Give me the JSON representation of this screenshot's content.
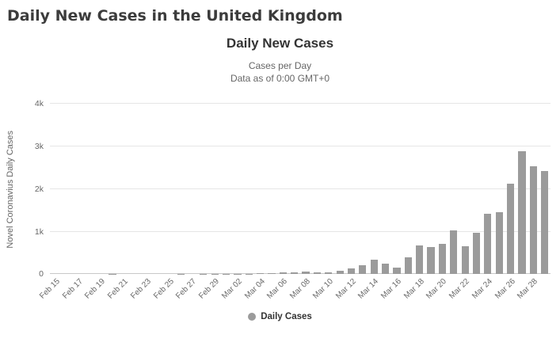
{
  "page": {
    "title": "Daily New Cases in the United Kingdom"
  },
  "chart_data": {
    "type": "bar",
    "title": "Daily New Cases",
    "subtitle1": "Cases per Day",
    "subtitle2": "Data as of 0:00 GMT+0",
    "ylabel": "Novel Coronavius Daily Cases",
    "legend_label": "Daily Cases",
    "legend_position": "bottom-center",
    "grid": "horizontal",
    "ylim": [
      0,
      4000
    ],
    "x_tick_every": 2,
    "y_ticks": [
      {
        "value": 0,
        "label": "0"
      },
      {
        "value": 1000,
        "label": "1k"
      },
      {
        "value": 2000,
        "label": "2k"
      },
      {
        "value": 3000,
        "label": "3k"
      },
      {
        "value": 4000,
        "label": "4k"
      }
    ],
    "categories": [
      "Feb 15",
      "Feb 16",
      "Feb 17",
      "Feb 18",
      "Feb 19",
      "Feb 20",
      "Feb 21",
      "Feb 22",
      "Feb 23",
      "Feb 24",
      "Feb 25",
      "Feb 26",
      "Feb 27",
      "Feb 28",
      "Feb 29",
      "Mar 01",
      "Mar 02",
      "Mar 03",
      "Mar 04",
      "Mar 05",
      "Mar 06",
      "Mar 07",
      "Mar 08",
      "Mar 09",
      "Mar 10",
      "Mar 11",
      "Mar 12",
      "Mar 13",
      "Mar 14",
      "Mar 15",
      "Mar 16",
      "Mar 17",
      "Mar 18",
      "Mar 19",
      "Mar 20",
      "Mar 21",
      "Mar 22",
      "Mar 23",
      "Mar 24",
      "Mar 25",
      "Mar 26",
      "Mar 27",
      "Mar 28",
      "Mar 29"
    ],
    "values": [
      0,
      0,
      0,
      1,
      0,
      2,
      0,
      0,
      0,
      0,
      0,
      3,
      0,
      2,
      3,
      13,
      4,
      12,
      34,
      29,
      48,
      45,
      67,
      46,
      50,
      83,
      134,
      208,
      342,
      251,
      152,
      407,
      676,
      643,
      714,
      1035,
      665,
      967,
      1427,
      1452,
      2129,
      2885,
      2546,
      2433
    ],
    "colors": {
      "bar": "#9b9b9b",
      "grid": "#e6e6e6",
      "axis_line": "#c8c8c8",
      "text_muted": "#666666",
      "title_text": "#333333",
      "header_text": "#3c3c3c"
    }
  }
}
